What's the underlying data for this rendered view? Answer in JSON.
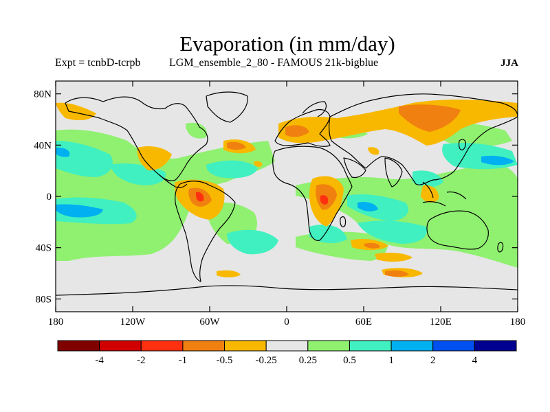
{
  "title": "Evaporation (in mm/day)",
  "expt_label": "Expt = tcnbD-tcrpb",
  "run_label": "LGM_ensemble_2_80 - FAMOUS 21k-bigblue",
  "season": "JJA",
  "lat_ticks": [
    {
      "label": "80N",
      "value": 80
    },
    {
      "label": "40N",
      "value": 40
    },
    {
      "label": "0",
      "value": 0
    },
    {
      "label": "40S",
      "value": -40
    },
    {
      "label": "80S",
      "value": -80
    }
  ],
  "lon_ticks": [
    {
      "label": "180",
      "value": -180
    },
    {
      "label": "120W",
      "value": -120
    },
    {
      "label": "60W",
      "value": -60
    },
    {
      "label": "0",
      "value": 0
    },
    {
      "label": "60E",
      "value": 60
    },
    {
      "label": "120E",
      "value": 120
    },
    {
      "label": "180",
      "value": 180
    }
  ],
  "colorbar": {
    "colors": [
      "#800000",
      "#d00000",
      "#ff3010",
      "#f08010",
      "#f8b800",
      "#e6e6e6",
      "#90f070",
      "#40f0c0",
      "#00b0f0",
      "#0050f0",
      "#000090"
    ],
    "labels": [
      "-4",
      "-2",
      "-1",
      "-0.5",
      "-0.25",
      "0.25",
      "0.5",
      "1",
      "2",
      "4"
    ]
  },
  "colors": {
    "background_field": "#e6e6e6",
    "coast": "#000000"
  }
}
